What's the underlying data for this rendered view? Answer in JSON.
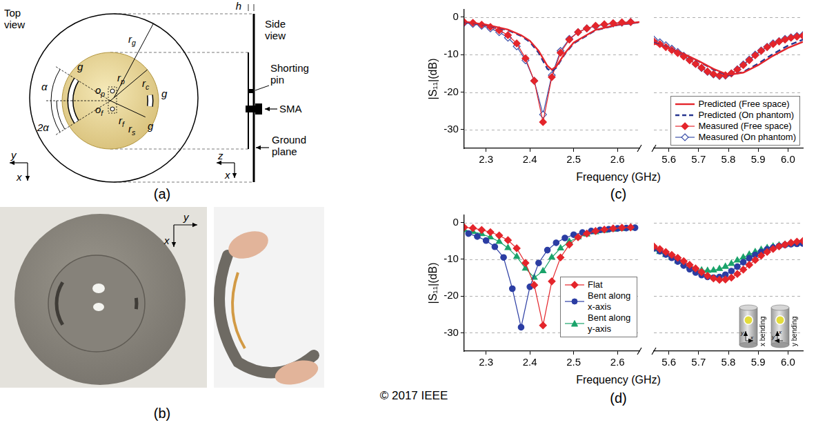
{
  "copyright": "© 2017 IEEE",
  "panel_a": {
    "label": "(a)",
    "labels": {
      "top_view": "Top view",
      "side_view": "Side view",
      "shorting_pin": "Shorting pin",
      "sma": "SMA",
      "ground_plane": "Ground plane",
      "h": "h",
      "g": "g",
      "alpha": "α",
      "two_alpha": "2α",
      "x": "x",
      "y": "y",
      "z": "z",
      "rg": {
        "main": "r",
        "sub": "g"
      },
      "rc": {
        "main": "r",
        "sub": "c"
      },
      "rp": {
        "main": "r",
        "sub": "p"
      },
      "rf": {
        "main": "r",
        "sub": "f"
      },
      "rs": {
        "main": "r",
        "sub": "s"
      },
      "op": {
        "main": "o",
        "sub": "p"
      },
      "of": {
        "main": "o",
        "sub": "f"
      }
    }
  },
  "panel_b": {
    "label": "(b)",
    "axes": {
      "x": "x",
      "y": "y"
    }
  },
  "chart_data": [
    {
      "label": "(c)",
      "type": "line",
      "x_label": "Frequency (GHz)",
      "y_label": "|S₁₁|(dB)",
      "ylim": [
        -35,
        2
      ],
      "yticks": [
        -30,
        -20,
        -10,
        0
      ],
      "grid": true,
      "legend": "lower right",
      "segments": [
        {
          "xlim": [
            2.25,
            2.65
          ],
          "xticks": [
            2.3,
            2.4,
            2.5,
            2.6
          ]
        },
        {
          "xlim": [
            5.55,
            6.05
          ],
          "xticks": [
            5.6,
            5.7,
            5.8,
            5.9,
            {
              "value": 6,
              "label": "6.0"
            }
          ]
        }
      ],
      "series": [
        {
          "name": "Predicted (Free space)",
          "color": "#e4252b",
          "line_style": "solid",
          "marker": "none",
          "x": [
            2.25,
            2.3,
            2.35,
            2.38,
            2.4,
            2.42,
            2.44,
            2.45,
            2.46,
            2.48,
            2.5,
            2.55,
            2.6,
            2.65,
            5.55,
            5.6,
            5.65,
            5.7,
            5.75,
            5.8,
            5.85,
            5.9,
            5.95,
            6.0,
            6.05
          ],
          "values": [
            -1.2,
            -2,
            -3.3,
            -4.8,
            -6.3,
            -9,
            -13,
            -14,
            -13.2,
            -9.6,
            -6.8,
            -3.4,
            -2,
            -1.3,
            -7,
            -8.3,
            -9.8,
            -11.7,
            -13.8,
            -15.4,
            -14.8,
            -12.8,
            -10.3,
            -8.2,
            -6.6
          ]
        },
        {
          "name": "Predicted (On phantom)",
          "color": "#27358f",
          "line_style": "dashed",
          "marker": "none",
          "x": [
            2.25,
            2.3,
            2.35,
            2.38,
            2.4,
            2.42,
            2.44,
            2.45,
            2.46,
            2.48,
            2.5,
            2.55,
            2.6,
            2.65,
            5.55,
            5.6,
            5.65,
            5.7,
            5.75,
            5.8,
            5.85,
            5.9,
            5.95,
            6.0,
            6.05
          ],
          "values": [
            -1.3,
            -2.1,
            -3.5,
            -5,
            -6.6,
            -9.5,
            -13.8,
            -14.5,
            -13.5,
            -9.8,
            -7,
            -3.5,
            -2.1,
            -1.4,
            -6.8,
            -8.2,
            -9.8,
            -11.8,
            -14,
            -15.6,
            -14.6,
            -12.4,
            -9.8,
            -7.6,
            -6
          ]
        },
        {
          "name": "Measured (Free space)",
          "color": "#e4252b",
          "line_style": "solid",
          "marker": "diamond",
          "x": [
            2.25,
            2.27,
            2.29,
            2.31,
            2.33,
            2.35,
            2.37,
            2.39,
            2.41,
            2.43,
            2.45,
            2.47,
            2.49,
            2.51,
            2.53,
            2.55,
            2.57,
            2.59,
            2.61,
            2.63,
            5.55,
            5.57,
            5.59,
            5.61,
            5.63,
            5.65,
            5.67,
            5.69,
            5.71,
            5.73,
            5.75,
            5.77,
            5.79,
            5.81,
            5.83,
            5.85,
            5.87,
            5.89,
            5.91,
            5.93,
            5.95,
            5.97,
            5.99,
            6.01,
            6.03,
            6.05
          ],
          "values": [
            -1.3,
            -1.5,
            -2,
            -2.6,
            -3.5,
            -4.8,
            -7,
            -11,
            -17,
            -28,
            -16,
            -9.5,
            -6,
            -4,
            -3,
            -2.3,
            -1.9,
            -1.6,
            -1.4,
            -1.3,
            -6.5,
            -7.2,
            -8,
            -8.8,
            -9.6,
            -10.5,
            -11.5,
            -12.5,
            -13.5,
            -14.5,
            -15.2,
            -15.6,
            -15.5,
            -15,
            -14,
            -12.8,
            -11.5,
            -10.2,
            -9,
            -8,
            -7.2,
            -6.5,
            -6,
            -5.5,
            -5.2,
            -5
          ]
        },
        {
          "name": "Measured (On phantom)",
          "color": "#3b4fa8",
          "line_style": "solid",
          "marker": "open_diamond",
          "x": [
            2.25,
            2.27,
            2.29,
            2.31,
            2.33,
            2.35,
            2.37,
            2.39,
            2.41,
            2.43,
            2.45,
            2.47,
            2.49,
            2.51,
            2.53,
            2.55,
            2.57,
            2.59,
            2.61,
            2.63,
            5.55,
            5.57,
            5.59,
            5.61,
            5.63,
            5.65,
            5.67,
            5.69,
            5.71,
            5.73,
            5.75,
            5.77,
            5.79,
            5.81,
            5.83,
            5.85,
            5.87,
            5.89,
            5.91,
            5.93,
            5.95,
            5.97,
            5.99,
            6.01,
            6.03,
            6.05
          ],
          "values": [
            -1.5,
            -1.8,
            -2.3,
            -3,
            -4,
            -5.5,
            -7.8,
            -11.5,
            -17,
            -26,
            -15.5,
            -9,
            -5.8,
            -4,
            -3,
            -2.4,
            -2,
            -1.7,
            -1.5,
            -1.3,
            -6,
            -6.7,
            -7.5,
            -8.4,
            -9.3,
            -10.3,
            -11.4,
            -12.5,
            -13.6,
            -14.6,
            -15.3,
            -15.7,
            -15.6,
            -15,
            -13.9,
            -12.6,
            -11.3,
            -10,
            -8.9,
            -7.9,
            -7,
            -6.4,
            -5.8,
            -5.4,
            -5,
            -4.8
          ]
        }
      ]
    },
    {
      "label": "(d)",
      "type": "line",
      "x_label": "Frequency (GHz)",
      "y_label": "|S₁₁|(dB)",
      "ylim": [
        -35,
        2
      ],
      "yticks": [
        -30,
        -20,
        -10,
        0
      ],
      "grid": true,
      "legend": "right",
      "inset": {
        "labels": [
          "x bending",
          "y bending"
        ],
        "axes": [
          "x",
          "y"
        ]
      },
      "segments": [
        {
          "xlim": [
            2.25,
            2.65
          ],
          "xticks": [
            2.3,
            2.4,
            2.5,
            2.6
          ]
        },
        {
          "xlim": [
            5.55,
            6.05
          ],
          "xticks": [
            5.6,
            5.7,
            5.8,
            5.9,
            {
              "value": 6,
              "label": "6.0"
            }
          ]
        }
      ],
      "series": [
        {
          "name": "Flat",
          "color": "#e4252b",
          "line_style": "solid",
          "marker": "diamond",
          "x": [
            2.25,
            2.27,
            2.29,
            2.31,
            2.33,
            2.35,
            2.37,
            2.39,
            2.41,
            2.43,
            2.45,
            2.47,
            2.49,
            2.51,
            2.53,
            2.55,
            2.57,
            2.59,
            2.61,
            2.63,
            5.55,
            5.57,
            5.59,
            5.61,
            5.63,
            5.65,
            5.67,
            5.69,
            5.71,
            5.73,
            5.75,
            5.77,
            5.79,
            5.81,
            5.83,
            5.85,
            5.87,
            5.89,
            5.91,
            5.93,
            5.95,
            5.97,
            5.99,
            6.01,
            6.03,
            6.05
          ],
          "values": [
            -1.3,
            -1.5,
            -2,
            -2.6,
            -3.5,
            -4.8,
            -7,
            -11,
            -17,
            -28,
            -16,
            -9.5,
            -6,
            -4,
            -3,
            -2.3,
            -1.9,
            -1.6,
            -1.4,
            -1.3,
            -6.5,
            -7.2,
            -8,
            -8.8,
            -9.6,
            -10.5,
            -11.5,
            -12.5,
            -13.5,
            -14.5,
            -15.2,
            -15.6,
            -15.5,
            -15,
            -14,
            -12.8,
            -11.5,
            -10.2,
            -9,
            -8,
            -7.2,
            -6.5,
            -6,
            -5.5,
            -5.2,
            -5
          ]
        },
        {
          "name": "Bent along x-axis",
          "color": "#2b3da3",
          "line_style": "solid",
          "marker": "circle",
          "x": [
            2.26,
            2.28,
            2.3,
            2.32,
            2.34,
            2.36,
            2.38,
            2.4,
            2.42,
            2.44,
            2.46,
            2.48,
            2.5,
            2.52,
            2.54,
            2.56,
            2.58,
            2.6,
            2.62,
            2.64,
            5.55,
            5.57,
            5.59,
            5.61,
            5.63,
            5.65,
            5.67,
            5.69,
            5.71,
            5.73,
            5.75,
            5.77,
            5.79,
            5.81,
            5.83,
            5.85,
            5.87,
            5.89,
            5.91,
            5.93,
            5.95,
            5.97,
            5.99,
            6.01,
            6.03,
            6.05
          ],
          "values": [
            -3,
            -3.8,
            -4.9,
            -6.6,
            -9.5,
            -18,
            -28.5,
            -17.5,
            -11,
            -7.5,
            -5.5,
            -4.2,
            -3.3,
            -2.7,
            -2.3,
            -2,
            -1.8,
            -1.6,
            -1.5,
            -1.4,
            -7,
            -7.8,
            -8.7,
            -9.6,
            -10.6,
            -11.7,
            -12.7,
            -13.6,
            -14.3,
            -14.8,
            -15,
            -14.8,
            -14.2,
            -13.2,
            -12,
            -10.8,
            -9.7,
            -8.8,
            -8,
            -7.3,
            -6.8,
            -6.4,
            -6.1,
            -5.9,
            -5.8,
            -5.7
          ]
        },
        {
          "name": "Bent along y-axis",
          "color": "#1aa36a",
          "line_style": "solid",
          "marker": "triangle",
          "x": [
            2.25,
            2.27,
            2.29,
            2.31,
            2.33,
            2.35,
            2.37,
            2.39,
            2.41,
            2.43,
            2.45,
            2.47,
            2.49,
            2.51,
            2.53,
            2.55,
            2.57,
            2.59,
            2.61,
            2.63,
            5.55,
            5.57,
            5.59,
            5.61,
            5.63,
            5.65,
            5.67,
            5.69,
            5.71,
            5.73,
            5.75,
            5.77,
            5.79,
            5.81,
            5.83,
            5.85,
            5.87,
            5.89,
            5.91,
            5.93,
            5.95,
            5.97,
            5.99,
            6.01,
            6.03,
            6.05
          ],
          "values": [
            -2,
            -2.5,
            -3.1,
            -4,
            -5.2,
            -6.9,
            -9.3,
            -12.5,
            -15,
            -13.2,
            -9.5,
            -7,
            -5.2,
            -4,
            -3.2,
            -2.6,
            -2.2,
            -1.9,
            -1.7,
            -1.5,
            -7.3,
            -8,
            -8.8,
            -9.6,
            -10.5,
            -11.3,
            -12,
            -12.6,
            -13,
            -13.1,
            -13,
            -12.6,
            -12,
            -11.2,
            -10.3,
            -9.5,
            -8.7,
            -8,
            -7.4,
            -6.9,
            -6.5,
            -6.2,
            -6,
            -5.8,
            -5.6,
            -5.5
          ]
        }
      ]
    }
  ]
}
